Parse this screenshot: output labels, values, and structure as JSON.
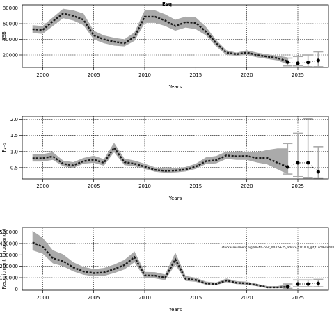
{
  "figure_title": "Esq",
  "chart_data": [
    {
      "type": "line",
      "id": "ssb",
      "xlabel": "Years",
      "ylabel": "SSB",
      "xlim": [
        1998,
        2028
      ],
      "ylim": [
        4000,
        84000
      ],
      "xticks": [
        2000,
        2005,
        2010,
        2015,
        2020,
        2025
      ],
      "yticks": [
        20000,
        40000,
        60000,
        80000
      ],
      "grid": true,
      "x": [
        1999,
        2000,
        2001,
        2002,
        2003,
        2004,
        2005,
        2006,
        2007,
        2008,
        2009,
        2010,
        2011,
        2012,
        2013,
        2014,
        2015,
        2016,
        2017,
        2018,
        2019,
        2020,
        2021,
        2022,
        2023,
        2024
      ],
      "series": [
        {
          "role": "estimate",
          "values": [
            53000,
            52000,
            63000,
            73000,
            70000,
            65000,
            45000,
            40000,
            37000,
            35000,
            43000,
            69000,
            69000,
            64000,
            57000,
            62000,
            61000,
            50000,
            35000,
            23000,
            21000,
            23000,
            20000,
            18000,
            16000,
            12000
          ]
        },
        {
          "role": "upper",
          "values": [
            58000,
            57000,
            68000,
            79000,
            77000,
            73000,
            51000,
            45000,
            42000,
            40000,
            49000,
            77000,
            77000,
            72000,
            65000,
            69000,
            68000,
            56000,
            39000,
            26000,
            23000,
            26000,
            23000,
            21000,
            19000,
            17000
          ]
        },
        {
          "role": "lower",
          "values": [
            48000,
            47000,
            57000,
            67000,
            64000,
            58000,
            40000,
            35000,
            32000,
            31000,
            38000,
            61000,
            61000,
            57000,
            51000,
            55000,
            53000,
            45000,
            31000,
            20000,
            19000,
            20000,
            17000,
            15000,
            13000,
            8000
          ]
        }
      ],
      "forecast": {
        "x": [
          2024,
          2025,
          2026,
          2027
        ],
        "values": [
          11000,
          9500,
          10500,
          13000
        ],
        "upper": [
          16000,
          18000,
          20000,
          24000
        ],
        "lower": [
          6000,
          6000,
          5000,
          5000
        ]
      }
    },
    {
      "type": "line",
      "id": "f",
      "xlabel": "Years",
      "ylabel": "F₂₋₅",
      "xlim": [
        1998,
        2028
      ],
      "ylim": [
        0.15,
        2.1
      ],
      "xticks": [
        2000,
        2005,
        2010,
        2015,
        2020,
        2025
      ],
      "yticks": [
        0.5,
        1.0,
        1.5,
        2.0
      ],
      "ytick_labels": [
        "0.5",
        "1.0",
        "1.5",
        "2.0"
      ],
      "grid": true,
      "x": [
        1999,
        2000,
        2001,
        2002,
        2003,
        2004,
        2005,
        2006,
        2007,
        2008,
        2009,
        2010,
        2011,
        2012,
        2013,
        2014,
        2015,
        2016,
        2017,
        2018,
        2019,
        2020,
        2021,
        2022,
        2023,
        2024
      ],
      "series": [
        {
          "role": "estimate",
          "values": [
            0.79,
            0.79,
            0.85,
            0.62,
            0.57,
            0.7,
            0.75,
            0.65,
            1.12,
            0.67,
            0.62,
            0.53,
            0.43,
            0.4,
            0.41,
            0.44,
            0.53,
            0.7,
            0.73,
            0.88,
            0.85,
            0.86,
            0.8,
            0.8,
            0.65,
            0.52
          ]
        },
        {
          "role": "upper",
          "values": [
            0.92,
            0.92,
            0.98,
            0.72,
            0.67,
            0.8,
            0.87,
            0.76,
            1.27,
            0.78,
            0.72,
            0.62,
            0.51,
            0.47,
            0.48,
            0.52,
            0.62,
            0.82,
            0.86,
            1.0,
            0.98,
            1.0,
            0.97,
            1.05,
            1.1,
            1.1
          ]
        },
        {
          "role": "lower",
          "values": [
            0.69,
            0.69,
            0.74,
            0.54,
            0.49,
            0.62,
            0.65,
            0.56,
            0.98,
            0.58,
            0.54,
            0.46,
            0.37,
            0.34,
            0.35,
            0.38,
            0.46,
            0.61,
            0.63,
            0.77,
            0.74,
            0.74,
            0.66,
            0.6,
            0.45,
            0.3
          ]
        }
      ],
      "forecast": {
        "x": [
          2024,
          2025,
          2026,
          2027
        ],
        "values": [
          0.52,
          0.65,
          0.65,
          0.37
        ],
        "upper": [
          1.25,
          1.57,
          2.02,
          1.15
        ],
        "lower": [
          0.3,
          0.22,
          0.18,
          0.16
        ]
      }
    },
    {
      "type": "line",
      "id": "recruitment",
      "xlabel": "Years",
      "ylabel": "Recruitment (thousands)",
      "xlim": [
        1998,
        2028
      ],
      "ylim": [
        -10000,
        540000
      ],
      "xticks": [
        2000,
        2005,
        2010,
        2015,
        2020,
        2025
      ],
      "yticks": [
        0,
        100000,
        200000,
        300000,
        400000,
        500000
      ],
      "ytick_labels": [
        "0",
        "100000",
        "200000",
        "300000",
        "400000",
        "500000"
      ],
      "grid": true,
      "annotation": "stockassessment.org\\WGNS-ce-k_WGCSE25_advice,Y10710_git,f1cc4648d08",
      "x": [
        1999,
        2000,
        2001,
        2002,
        2003,
        2004,
        2005,
        2006,
        2007,
        2008,
        2009,
        2010,
        2011,
        2012,
        2013,
        2014,
        2015,
        2016,
        2017,
        2018,
        2019,
        2020,
        2021,
        2022,
        2023,
        2024
      ],
      "series": [
        {
          "role": "estimate",
          "values": [
            410000,
            370000,
            270000,
            245000,
            190000,
            155000,
            140000,
            145000,
            175000,
            210000,
            280000,
            120000,
            118000,
            100000,
            260000,
            90000,
            80000,
            50000,
            45000,
            75000,
            55000,
            50000,
            35000,
            15000,
            15000,
            20000
          ]
        },
        {
          "role": "upper",
          "values": [
            510000,
            450000,
            340000,
            305000,
            235000,
            195000,
            175000,
            185000,
            215000,
            255000,
            330000,
            150000,
            148000,
            128000,
            320000,
            115000,
            100000,
            66000,
            58000,
            92000,
            70000,
            65000,
            47000,
            26000,
            26000,
            45000
          ]
        },
        {
          "role": "lower",
          "values": [
            340000,
            310000,
            225000,
            200000,
            155000,
            125000,
            112000,
            115000,
            140000,
            172000,
            235000,
            95000,
            94000,
            78000,
            215000,
            72000,
            64000,
            38000,
            34000,
            60000,
            43000,
            38000,
            25000,
            8000,
            8000,
            6000
          ]
        }
      ],
      "forecast": {
        "x": [
          2024,
          2025,
          2026,
          2027
        ],
        "values": [
          20000,
          45000,
          45000,
          50000
        ],
        "upper": [
          45000,
          80000,
          80000,
          85000
        ],
        "lower": [
          6000,
          20000,
          20000,
          20000
        ]
      }
    }
  ]
}
